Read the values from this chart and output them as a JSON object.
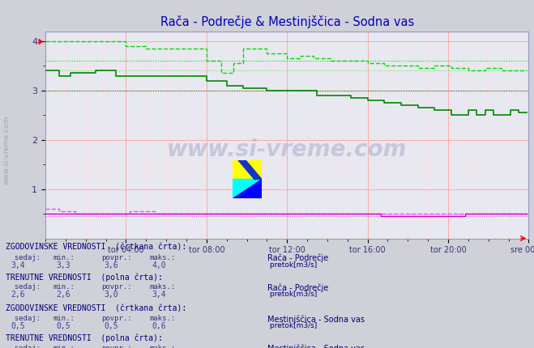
{
  "title": "Rača - Podrečje & Mestinjščica - Sodna vas",
  "bg_color": "#d0d0d8",
  "plot_bg_color": "#e8e8f0",
  "grid_major_color": "#ffaaaa",
  "grid_minor_color": "#ffdddd",
  "xlim": [
    0,
    288
  ],
  "ylim": [
    0,
    4.2
  ],
  "yticks": [
    1,
    2,
    3,
    4
  ],
  "xtick_labels": [
    "tor 04:00",
    "tor 08:00",
    "tor 12:00",
    "tor 16:00",
    "tor 20:00",
    "sre 00:00"
  ],
  "xtick_positions": [
    48,
    96,
    144,
    192,
    240,
    288
  ],
  "raca_hist_color": "#00dd00",
  "raca_curr_color": "#008800",
  "mestinj_hist_color": "#ff44ff",
  "mestinj_curr_color": "#cc00cc",
  "axis_color": "#9999bb",
  "title_color": "#0000bb",
  "text_header_color": "#000077",
  "text_label_color": "#333377",
  "text_value_color": "#334499"
}
